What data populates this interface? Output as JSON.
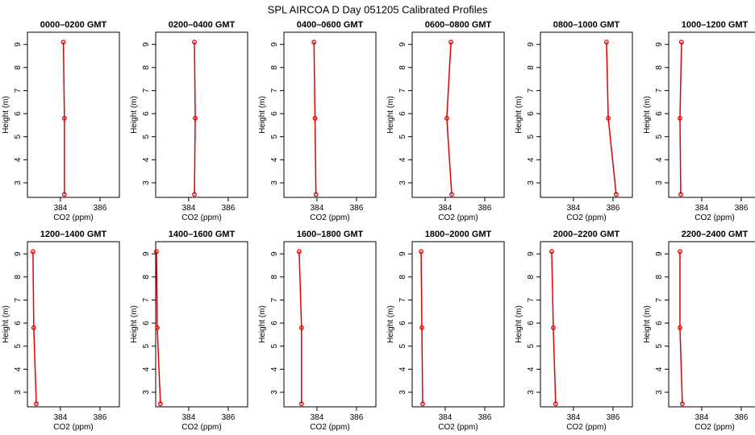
{
  "title": "SPL AIRCOA D  Day 051205  Calibrated Profiles",
  "chart_data": [
    {
      "type": "line",
      "title": "0000–0200 GMT",
      "xlabel": "CO2 (ppm)",
      "ylabel": "Height (m)",
      "heights": [
        2.5,
        5.8,
        9.1
      ],
      "series": [
        {
          "color": "#e00000",
          "values": [
            384.2,
            384.2,
            384.15
          ]
        }
      ],
      "xlim": [
        382.33,
        386.98
      ],
      "xticks": [
        384,
        386
      ],
      "ylim": [
        2.37,
        9.53
      ],
      "yticks": [
        3,
        4,
        5,
        6,
        7,
        8,
        9
      ]
    },
    {
      "type": "line",
      "title": "0200–0400 GMT",
      "xlabel": "CO2 (ppm)",
      "ylabel": "Height (m)",
      "heights": [
        2.5,
        5.8,
        9.1
      ],
      "series": [
        {
          "color": "#e00000",
          "values": [
            384.29,
            384.33,
            384.29
          ]
        }
      ],
      "xlim": [
        382.33,
        386.98
      ],
      "xticks": [
        384,
        386
      ],
      "ylim": [
        2.37,
        9.53
      ],
      "yticks": [
        3,
        4,
        5,
        6,
        7,
        8,
        9
      ]
    },
    {
      "type": "line",
      "title": "0400–0600 GMT",
      "xlabel": "CO2 (ppm)",
      "ylabel": "Height (m)",
      "heights": [
        2.5,
        5.8,
        9.1
      ],
      "series": [
        {
          "color": "#e00000",
          "values": [
            383.95,
            383.9,
            383.85
          ]
        }
      ],
      "xlim": [
        382.33,
        386.98
      ],
      "xticks": [
        384,
        386
      ],
      "ylim": [
        2.37,
        9.53
      ],
      "yticks": [
        3,
        4,
        5,
        6,
        7,
        8,
        9
      ]
    },
    {
      "type": "line",
      "title": "0600–0800 GMT",
      "xlabel": "CO2 (ppm)",
      "ylabel": "Height (m)",
      "heights": [
        2.5,
        5.8,
        9.1
      ],
      "series": [
        {
          "color": "#e00000",
          "values": [
            384.33,
            384.08,
            384.29
          ]
        }
      ],
      "xlim": [
        382.33,
        386.98
      ],
      "xticks": [
        384,
        386
      ],
      "ylim": [
        2.37,
        9.53
      ],
      "yticks": [
        3,
        4,
        5,
        6,
        7,
        8,
        9
      ]
    },
    {
      "type": "line",
      "title": "0800–1000 GMT",
      "xlabel": "CO2 (ppm)",
      "ylabel": "Height (m)",
      "heights": [
        2.5,
        5.8,
        9.1
      ],
      "series": [
        {
          "color": "#e00000",
          "values": [
            386.16,
            385.76,
            385.67
          ]
        }
      ],
      "xlim": [
        382.33,
        386.98
      ],
      "xticks": [
        384,
        386
      ],
      "ylim": [
        2.37,
        9.53
      ],
      "yticks": [
        3,
        4,
        5,
        6,
        7,
        8,
        9
      ]
    },
    {
      "type": "line",
      "title": "1000–1200 GMT",
      "xlabel": "CO2 (ppm)",
      "ylabel": "Height (m)",
      "heights": [
        2.5,
        5.8,
        9.1
      ],
      "series": [
        {
          "color": "#e00000",
          "values": [
            382.94,
            382.9,
            382.98
          ]
        }
      ],
      "xlim": [
        382.33,
        386.98
      ],
      "xticks": [
        384,
        386
      ],
      "ylim": [
        2.37,
        9.53
      ],
      "yticks": [
        3,
        4,
        5,
        6,
        7,
        8,
        9
      ]
    },
    {
      "type": "line",
      "title": "1200–1400 GMT",
      "xlabel": "CO2 (ppm)",
      "ylabel": "Height (m)",
      "heights": [
        2.5,
        5.8,
        9.1
      ],
      "series": [
        {
          "color": "#e00000",
          "values": [
            382.78,
            382.65,
            382.61
          ]
        }
      ],
      "xlim": [
        382.33,
        386.98
      ],
      "xticks": [
        384,
        386
      ],
      "ylim": [
        2.37,
        9.53
      ],
      "yticks": [
        3,
        4,
        5,
        6,
        7,
        8,
        9
      ]
    },
    {
      "type": "line",
      "title": "1400–1600 GMT",
      "xlabel": "CO2 (ppm)",
      "ylabel": "Height (m)",
      "heights": [
        2.5,
        5.8,
        9.1
      ],
      "series": [
        {
          "color": "#e00000",
          "values": [
            382.57,
            382.41,
            382.37
          ]
        }
      ],
      "xlim": [
        382.33,
        386.98
      ],
      "xticks": [
        384,
        386
      ],
      "ylim": [
        2.37,
        9.53
      ],
      "yticks": [
        3,
        4,
        5,
        6,
        7,
        8,
        9
      ]
    },
    {
      "type": "line",
      "title": "1600–1800 GMT",
      "xlabel": "CO2 (ppm)",
      "ylabel": "Height (m)",
      "heights": [
        2.5,
        5.8,
        9.1
      ],
      "series": [
        {
          "color": "#e00000",
          "values": [
            383.22,
            383.22,
            383.1
          ]
        }
      ],
      "xlim": [
        382.33,
        386.98
      ],
      "xticks": [
        384,
        386
      ],
      "ylim": [
        2.37,
        9.53
      ],
      "yticks": [
        3,
        4,
        5,
        6,
        7,
        8,
        9
      ]
    },
    {
      "type": "line",
      "title": "1800–2000 GMT",
      "xlabel": "CO2 (ppm)",
      "ylabel": "Height (m)",
      "heights": [
        2.5,
        5.8,
        9.1
      ],
      "series": [
        {
          "color": "#e00000",
          "values": [
            382.86,
            382.82,
            382.78
          ]
        }
      ],
      "xlim": [
        382.33,
        386.98
      ],
      "xticks": [
        384,
        386
      ],
      "ylim": [
        2.37,
        9.53
      ],
      "yticks": [
        3,
        4,
        5,
        6,
        7,
        8,
        9
      ]
    },
    {
      "type": "line",
      "title": "2000–2200 GMT",
      "xlabel": "CO2 (ppm)",
      "ylabel": "Height (m)",
      "heights": [
        2.5,
        5.8,
        9.1
      ],
      "series": [
        {
          "color": "#e00000",
          "values": [
            383.1,
            382.98,
            382.9
          ]
        }
      ],
      "xlim": [
        382.33,
        386.98
      ],
      "xticks": [
        384,
        386
      ],
      "ylim": [
        2.37,
        9.53
      ],
      "yticks": [
        3,
        4,
        5,
        6,
        7,
        8,
        9
      ]
    },
    {
      "type": "line",
      "title": "2200–2400 GMT",
      "xlabel": "CO2 (ppm)",
      "ylabel": "Height (m)",
      "heights": [
        2.5,
        5.8,
        9.1
      ],
      "series": [
        {
          "color": "#e00000",
          "values": [
            383.02,
            382.9,
            382.9
          ]
        }
      ],
      "xlim": [
        382.33,
        386.98
      ],
      "xticks": [
        384,
        386
      ],
      "ylim": [
        2.37,
        9.53
      ],
      "yticks": [
        3,
        4,
        5,
        6,
        7,
        8,
        9
      ]
    }
  ]
}
